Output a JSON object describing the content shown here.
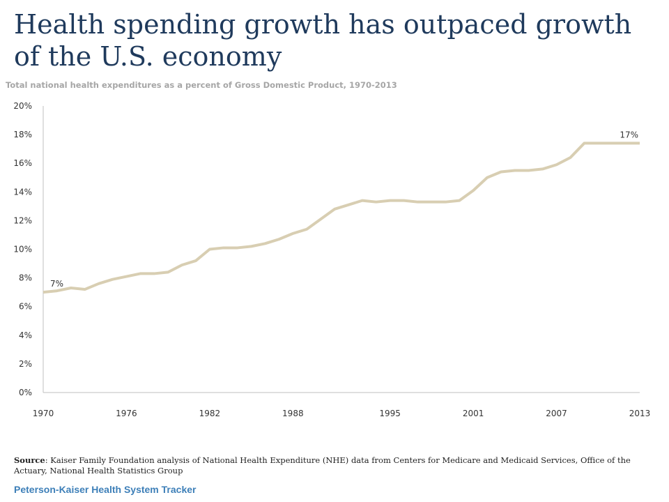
{
  "header": {
    "title": "Health spending growth has outpaced growth of the U.S. economy",
    "subtitle": "Total national health expenditures as a percent of Gross Domestic Product, 1970-2013"
  },
  "source": {
    "label": "Source",
    "text": ": Kaiser Family Foundation analysis of National Health Expenditure (NHE) data from Centers for Medicare and Medicaid Services, Office of the Actuary, National Health Statistics Group"
  },
  "footer": {
    "brand": "Peterson-Kaiser Health System Tracker"
  },
  "colors": {
    "line": "#d8ceb2",
    "axis": "#bfbfbf",
    "title": "#1f3a5c",
    "footer": "#3d7fb8"
  },
  "chart_data": {
    "type": "line",
    "title": "Health spending growth has outpaced growth of the U.S. economy",
    "subtitle": "Total national health expenditures as a percent of Gross Domestic Product, 1970-2013",
    "xlabel": "",
    "ylabel": "",
    "ylim": [
      0,
      20
    ],
    "xlim": [
      1970,
      2013
    ],
    "grid": false,
    "legend": "none",
    "y_ticks": [
      "0%",
      "2%",
      "4%",
      "6%",
      "8%",
      "10%",
      "12%",
      "14%",
      "16%",
      "18%",
      "20%"
    ],
    "x_ticks": [
      "1970",
      "1976",
      "1982",
      "1988",
      "1995",
      "2001",
      "2007",
      "2013"
    ],
    "x": [
      1970,
      1971,
      1972,
      1973,
      1974,
      1975,
      1976,
      1977,
      1978,
      1979,
      1980,
      1981,
      1982,
      1983,
      1984,
      1985,
      1986,
      1987,
      1988,
      1989,
      1990,
      1991,
      1992,
      1993,
      1994,
      1995,
      1996,
      1997,
      1998,
      1999,
      2000,
      2001,
      2002,
      2003,
      2004,
      2005,
      2006,
      2007,
      2008,
      2009,
      2010,
      2011,
      2012,
      2013
    ],
    "series": [
      {
        "values": [
          7.0,
          7.1,
          7.3,
          7.2,
          7.6,
          7.9,
          8.1,
          8.3,
          8.3,
          8.4,
          8.9,
          9.2,
          10.0,
          10.1,
          10.1,
          10.2,
          10.4,
          10.7,
          11.1,
          11.4,
          12.1,
          12.8,
          13.1,
          13.4,
          13.3,
          13.4,
          13.4,
          13.3,
          13.3,
          13.3,
          13.4,
          14.1,
          15.0,
          15.4,
          15.5,
          15.5,
          15.6,
          15.9,
          16.4,
          17.4,
          17.4,
          17.4,
          17.4,
          17.4
        ]
      }
    ],
    "data_labels": [
      {
        "text": "7%",
        "x": 1970,
        "y": 7.0
      },
      {
        "text": "17%",
        "x": 2013,
        "y": 17.4
      }
    ]
  }
}
